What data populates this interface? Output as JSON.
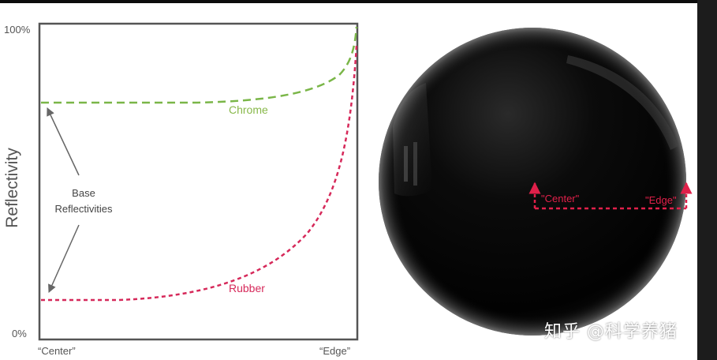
{
  "chart": {
    "y_axis_label": "Reflectivity",
    "y_top_label": "100%",
    "y_bottom_label": "0%",
    "x_left_label": "“Center”",
    "x_right_label": "“Edge”",
    "curve_labels": {
      "chrome": "Chrome",
      "rubber": "Rubber"
    },
    "annotation": {
      "line1": "Base",
      "line2": "Reflectivities"
    }
  },
  "sphere": {
    "center_label": "\"Center\"",
    "edge_label": "\"Edge\""
  },
  "watermark": "知乎 @科学养猪",
  "colors": {
    "chrome": "#7ab648",
    "rubber": "#d6295a",
    "axis": "#555555",
    "sphere_marker": "#e0204a"
  }
}
